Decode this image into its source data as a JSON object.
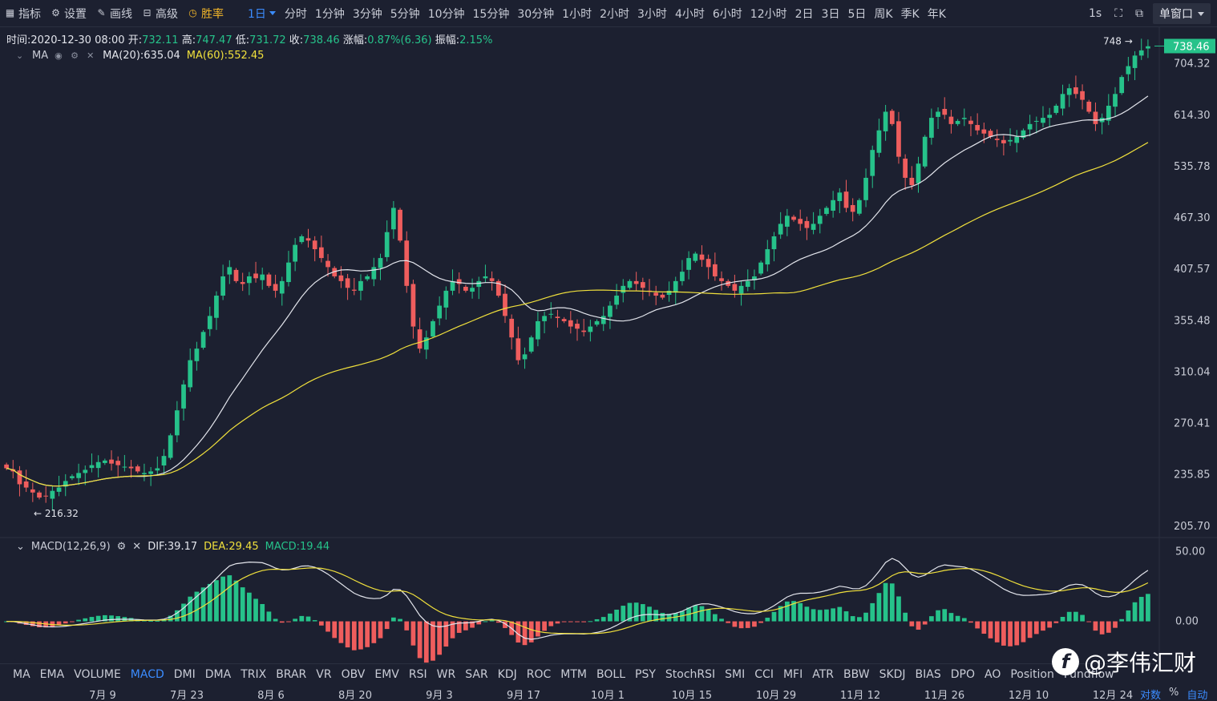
{
  "toolbar": {
    "indicator_label": "指标",
    "settings_label": "设置",
    "draw_label": "画线",
    "advanced_label": "高级",
    "winrate_label": "胜率",
    "current_interval": "1日",
    "intervals": [
      "分时",
      "1分钟",
      "3分钟",
      "5分钟",
      "10分钟",
      "15分钟",
      "30分钟",
      "1小时",
      "2小时",
      "3小时",
      "4小时",
      "6小时",
      "12小时",
      "2日",
      "3日",
      "5日",
      "周K",
      "季K",
      "年K"
    ],
    "refresh": "1s",
    "window_mode": "单窗口"
  },
  "info": {
    "time_label": "时间:",
    "time": "2020-12-30 08:00",
    "open_label": "开:",
    "open": "732.11",
    "high_label": "高:",
    "high": "747.47",
    "low_label": "低:",
    "low": "731.72",
    "close_label": "收:",
    "close": "738.46",
    "change_label": "涨幅:",
    "change": "0.87%(6.36)",
    "amplitude_label": "振幅:",
    "amplitude": "2.15%"
  },
  "ma_legend": {
    "name": "MA",
    "ma20": "MA(20):635.04",
    "ma60": "MA(60):552.45"
  },
  "macd_legend": {
    "name": "MACD(12,26,9)",
    "dif": "DIF:39.17",
    "dea": "DEA:29.45",
    "macd": "MACD:19.44"
  },
  "colors": {
    "up": "#26c28a",
    "down": "#ef5d5d",
    "ma20": "#e3e5ec",
    "ma60": "#f0e03c",
    "bg": "#1c2030",
    "grid": "#262b3a"
  },
  "price_axis": {
    "labels": [
      "704.32",
      "614.30",
      "535.78",
      "467.30",
      "407.57",
      "355.48",
      "310.04",
      "270.41",
      "235.85",
      "205.70"
    ],
    "current": "738.46",
    "high_marker": "748",
    "low_marker": "216.32"
  },
  "macd_axis": {
    "labels": [
      "50.00",
      "0.00"
    ]
  },
  "indicators": [
    "MA",
    "EMA",
    "VOLUME",
    "MACD",
    "DMI",
    "DMA",
    "TRIX",
    "BRAR",
    "VR",
    "OBV",
    "EMV",
    "RSI",
    "WR",
    "SAR",
    "KDJ",
    "ROC",
    "MTM",
    "BOLL",
    "PSY",
    "StochRSI",
    "SMI",
    "CCI",
    "MFI",
    "ATR",
    "BBW",
    "SKDJ",
    "BIAS",
    "DPO",
    "AO",
    "Position",
    "Fundflow"
  ],
  "active_indicator": "MACD",
  "dates": [
    "7月 9",
    "7月 23",
    "8月 6",
    "8月 20",
    "9月 3",
    "9月 17",
    "10月 1",
    "10月 15",
    "10月 29",
    "11月 12",
    "11月 26",
    "12月 10",
    "12月 24"
  ],
  "scale_options": [
    "对数",
    "%",
    "自动"
  ],
  "watermark": "@李伟汇财",
  "chart_data": {
    "type": "candlestick",
    "ma20_value": 635.04,
    "ma60_value": 552.45,
    "dif": 39.17,
    "dea": 29.45,
    "macd": 19.44,
    "closes": [
      240,
      238,
      230,
      228,
      225,
      222,
      223,
      226,
      228,
      232,
      235,
      237,
      239,
      242,
      244,
      245,
      243,
      242,
      241,
      240,
      238,
      237,
      238,
      240,
      248,
      262,
      280,
      300,
      320,
      330,
      345,
      360,
      380,
      400,
      410,
      395,
      392,
      400,
      398,
      402,
      390,
      385,
      395,
      415,
      435,
      445,
      440,
      430,
      420,
      410,
      400,
      395,
      388,
      385,
      395,
      400,
      410,
      420,
      450,
      480,
      440,
      390,
      350,
      330,
      340,
      355,
      370,
      385,
      395,
      392,
      385,
      388,
      395,
      400,
      395,
      380,
      360,
      340,
      320,
      325,
      340,
      355,
      360,
      362,
      358,
      355,
      350,
      348,
      345,
      350,
      355,
      360,
      370,
      380,
      390,
      395,
      392,
      388,
      384,
      380,
      378,
      385,
      395,
      405,
      420,
      425,
      418,
      410,
      400,
      395,
      390,
      385,
      390,
      395,
      400,
      415,
      430,
      445,
      460,
      470,
      465,
      460,
      455,
      460,
      470,
      480,
      490,
      500,
      480,
      475,
      490,
      520,
      560,
      590,
      620,
      600,
      550,
      520,
      510,
      540,
      580,
      610,
      620,
      615,
      600,
      605,
      610,
      600,
      590,
      585,
      580,
      575,
      570,
      575,
      580,
      590,
      600,
      605,
      610,
      615,
      630,
      650,
      660,
      650,
      640,
      620,
      600,
      610,
      630,
      650,
      680,
      700,
      720,
      730,
      738
    ]
  }
}
